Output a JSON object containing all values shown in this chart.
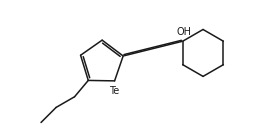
{
  "bg_color": "#ffffff",
  "line_color": "#1a1a1a",
  "line_width": 1.1,
  "font_size_Te": 7.0,
  "font_size_OH": 7.0,
  "Te_label": "Te",
  "OH_label": "OH",
  "xlim": [
    0,
    11
  ],
  "ylim": [
    -1.0,
    5.5
  ]
}
